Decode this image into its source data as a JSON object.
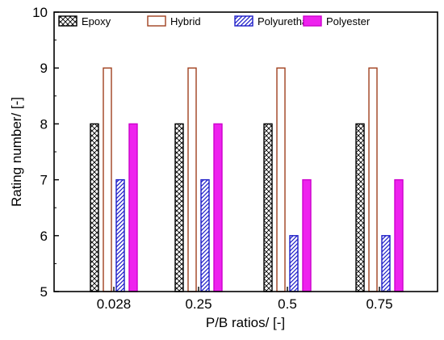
{
  "chart_data": {
    "type": "bar",
    "categories": [
      "0.028",
      "0.25",
      "0.5",
      "0.75"
    ],
    "series": [
      {
        "name": "Epoxy",
        "values": [
          8,
          8,
          8,
          8
        ],
        "stroke": "#000000",
        "fill": "#ffffff",
        "pattern": "crosshatch"
      },
      {
        "name": "Hybrid",
        "values": [
          9,
          9,
          9,
          9
        ],
        "stroke": "#a0401e",
        "fill": "#ffffff",
        "pattern": "none"
      },
      {
        "name": "Polyurethane",
        "values": [
          7,
          7,
          6,
          6
        ],
        "stroke": "#1c1cc8",
        "fill": "#ffffff",
        "pattern": "diagonal"
      },
      {
        "name": "Polyester",
        "values": [
          8,
          8,
          7,
          7
        ],
        "stroke": "#cc00cc",
        "fill": "#ee22ee",
        "pattern": "solid"
      }
    ],
    "xlabel": "P/B ratios/ [-]",
    "ylabel": "Rating number/ [-]",
    "ylim": [
      5,
      10
    ],
    "yticks": [
      "5",
      "6",
      "7",
      "8",
      "9",
      "10"
    ],
    "grid": false,
    "legend_position": "top"
  }
}
